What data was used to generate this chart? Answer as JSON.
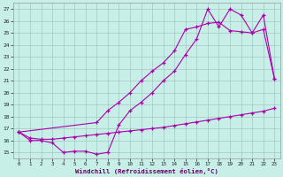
{
  "xlabel": "Windchill (Refroidissement éolien,°C)",
  "bg_color": "#c8eee8",
  "grid_color": "#a0c8c0",
  "line_color": "#aa00aa",
  "xlim": [
    -0.5,
    23.5
  ],
  "ylim": [
    14.5,
    27.5
  ],
  "xticks": [
    0,
    1,
    2,
    3,
    4,
    5,
    6,
    7,
    8,
    9,
    10,
    11,
    12,
    13,
    14,
    15,
    16,
    17,
    18,
    19,
    20,
    21,
    22,
    23
  ],
  "yticks": [
    15,
    16,
    17,
    18,
    19,
    20,
    21,
    22,
    23,
    24,
    25,
    26,
    27
  ],
  "line1_x": [
    0,
    1,
    2,
    3,
    4,
    5,
    6,
    7,
    8,
    9,
    10,
    11,
    12,
    13,
    14,
    15,
    16,
    17,
    18,
    19,
    20,
    21,
    22,
    23
  ],
  "line1_y": [
    16.7,
    16.0,
    16.0,
    15.8,
    15.0,
    15.1,
    15.1,
    14.85,
    15.0,
    17.3,
    18.5,
    19.2,
    20.0,
    21.0,
    21.8,
    23.2,
    24.5,
    27.0,
    25.5,
    27.0,
    26.5,
    25.0,
    26.5,
    21.2
  ],
  "line2_x": [
    0,
    7,
    8,
    9,
    10,
    11,
    12,
    13,
    14,
    15,
    16,
    17,
    18,
    19,
    20,
    21,
    22,
    23
  ],
  "line2_y": [
    16.7,
    17.5,
    18.5,
    19.2,
    20.0,
    21.0,
    21.8,
    22.5,
    23.5,
    25.3,
    25.5,
    25.8,
    25.9,
    25.2,
    25.1,
    25.0,
    25.3,
    21.2
  ],
  "line3_x": [
    0,
    1,
    2,
    3,
    4,
    5,
    6,
    7,
    8,
    9,
    10,
    11,
    12,
    13,
    14,
    15,
    16,
    17,
    18,
    19,
    20,
    21,
    22,
    23
  ],
  "line3_y": [
    16.7,
    16.2,
    16.1,
    16.1,
    16.2,
    16.3,
    16.4,
    16.5,
    16.6,
    16.7,
    16.8,
    16.9,
    17.0,
    17.1,
    17.25,
    17.4,
    17.55,
    17.7,
    17.85,
    18.0,
    18.15,
    18.3,
    18.45,
    18.7
  ]
}
